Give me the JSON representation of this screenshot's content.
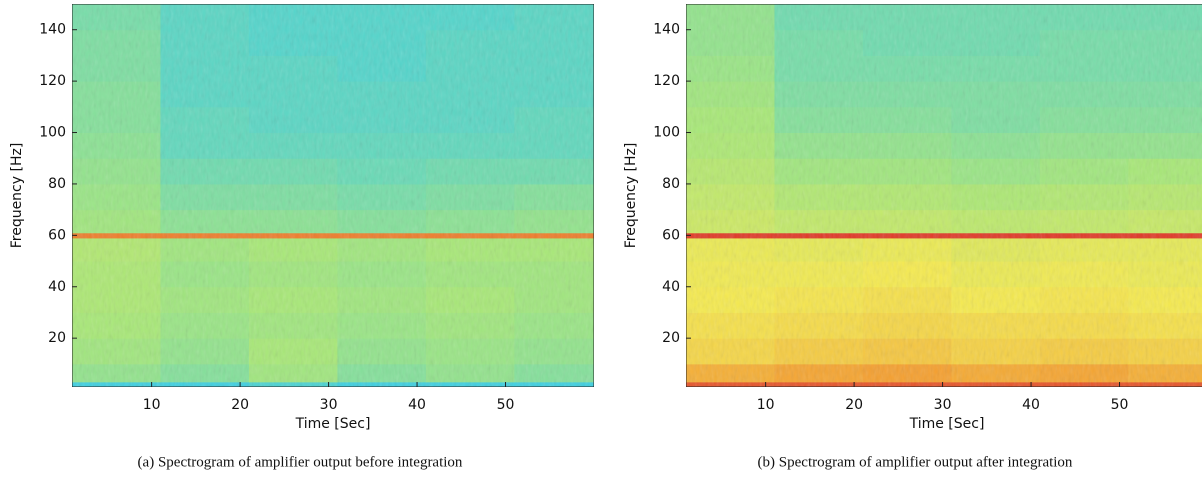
{
  "chart_data": [
    {
      "type": "heatmap",
      "caption": "(a) Spectrogram of amplifier output before integration",
      "xlabel": "Time [Sec]",
      "ylabel": "Frequency [Hz]",
      "xlim": [
        1,
        60
      ],
      "ylim": [
        1,
        150
      ],
      "xticks": [
        10,
        20,
        30,
        40,
        50
      ],
      "yticks": [
        20,
        40,
        60,
        80,
        100,
        120,
        140
      ],
      "x_bins": [
        1,
        11,
        21,
        31,
        41,
        51,
        60
      ],
      "y_bins": [
        1,
        3,
        10,
        20,
        30,
        40,
        50,
        59,
        61,
        70,
        80,
        90,
        100,
        110,
        120,
        130,
        140,
        150
      ],
      "values": [
        [
          0.3,
          0.3,
          0.32,
          0.3,
          0.3,
          0.3
        ],
        [
          0.42,
          0.4,
          0.44,
          0.4,
          0.42,
          0.4
        ],
        [
          0.44,
          0.42,
          0.45,
          0.42,
          0.43,
          0.42
        ],
        [
          0.45,
          0.43,
          0.44,
          0.43,
          0.44,
          0.43
        ],
        [
          0.46,
          0.44,
          0.45,
          0.44,
          0.45,
          0.44
        ],
        [
          0.46,
          0.43,
          0.44,
          0.43,
          0.44,
          0.44
        ],
        [
          0.47,
          0.44,
          0.45,
          0.44,
          0.45,
          0.45
        ],
        [
          0.8,
          0.8,
          0.8,
          0.8,
          0.8,
          0.8
        ],
        [
          0.44,
          0.41,
          0.41,
          0.4,
          0.41,
          0.42
        ],
        [
          0.43,
          0.39,
          0.39,
          0.38,
          0.39,
          0.4
        ],
        [
          0.42,
          0.37,
          0.37,
          0.36,
          0.37,
          0.37
        ],
        [
          0.41,
          0.35,
          0.35,
          0.35,
          0.35,
          0.35
        ],
        [
          0.4,
          0.35,
          0.34,
          0.34,
          0.34,
          0.35
        ],
        [
          0.4,
          0.34,
          0.34,
          0.34,
          0.34,
          0.34
        ],
        [
          0.39,
          0.34,
          0.34,
          0.33,
          0.34,
          0.34
        ],
        [
          0.39,
          0.34,
          0.33,
          0.33,
          0.34,
          0.34
        ],
        [
          0.38,
          0.34,
          0.33,
          0.33,
          0.33,
          0.34
        ]
      ],
      "colormap": [
        {
          "value": 0,
          "color": "#1f5fe0"
        },
        {
          "value": 0.3,
          "color": "#3fd0e0"
        },
        {
          "value": 0.45,
          "color": "#a8e878"
        },
        {
          "value": 0.6,
          "color": "#f5ea50"
        },
        {
          "value": 0.75,
          "color": "#f5a030"
        },
        {
          "value": 0.9,
          "color": "#e03a28"
        },
        {
          "value": 1,
          "color": "#b01818"
        }
      ]
    },
    {
      "type": "heatmap",
      "caption": "(b) Spectrogram of amplifier output after integration",
      "xlabel": "Time [Sec]",
      "ylabel": "Frequency [Hz]",
      "xlim": [
        1,
        60
      ],
      "ylim": [
        1,
        150
      ],
      "xticks": [
        10,
        20,
        30,
        40,
        50
      ],
      "yticks": [
        20,
        40,
        60,
        80,
        100,
        120,
        140
      ],
      "x_bins": [
        1,
        11,
        21,
        31,
        41,
        51,
        60
      ],
      "y_bins": [
        1,
        3,
        10,
        20,
        30,
        40,
        50,
        59,
        61,
        70,
        80,
        90,
        100,
        110,
        120,
        130,
        140,
        150
      ],
      "values": [
        [
          0.86,
          0.86,
          0.86,
          0.86,
          0.86,
          0.86
        ],
        [
          0.72,
          0.74,
          0.75,
          0.73,
          0.74,
          0.72
        ],
        [
          0.64,
          0.66,
          0.67,
          0.65,
          0.66,
          0.65
        ],
        [
          0.62,
          0.63,
          0.64,
          0.63,
          0.63,
          0.62
        ],
        [
          0.6,
          0.61,
          0.62,
          0.6,
          0.61,
          0.6
        ],
        [
          0.59,
          0.59,
          0.6,
          0.58,
          0.59,
          0.58
        ],
        [
          0.58,
          0.57,
          0.58,
          0.56,
          0.57,
          0.57
        ],
        [
          0.9,
          0.9,
          0.9,
          0.9,
          0.9,
          0.9
        ],
        [
          0.52,
          0.5,
          0.5,
          0.49,
          0.5,
          0.51
        ],
        [
          0.5,
          0.47,
          0.47,
          0.46,
          0.47,
          0.48
        ],
        [
          0.48,
          0.44,
          0.44,
          0.43,
          0.44,
          0.45
        ],
        [
          0.46,
          0.42,
          0.42,
          0.41,
          0.42,
          0.42
        ],
        [
          0.45,
          0.4,
          0.4,
          0.39,
          0.4,
          0.4
        ],
        [
          0.44,
          0.39,
          0.39,
          0.39,
          0.39,
          0.39
        ],
        [
          0.43,
          0.38,
          0.38,
          0.38,
          0.38,
          0.38
        ],
        [
          0.42,
          0.38,
          0.37,
          0.37,
          0.38,
          0.38
        ],
        [
          0.42,
          0.37,
          0.37,
          0.37,
          0.37,
          0.37
        ]
      ],
      "colormap": [
        {
          "value": 0,
          "color": "#1f5fe0"
        },
        {
          "value": 0.3,
          "color": "#3fd0e0"
        },
        {
          "value": 0.45,
          "color": "#a8e878"
        },
        {
          "value": 0.6,
          "color": "#f5ea50"
        },
        {
          "value": 0.75,
          "color": "#f5a030"
        },
        {
          "value": 0.9,
          "color": "#e03a28"
        },
        {
          "value": 1,
          "color": "#b01818"
        }
      ]
    }
  ]
}
